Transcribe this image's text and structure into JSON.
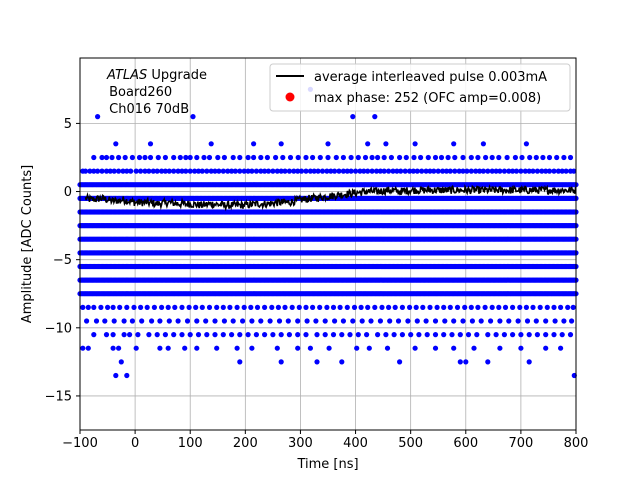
{
  "chart_data": {
    "type": "scatter",
    "xlabel": "Time [ns]",
    "ylabel": "Amplitude [ADC Counts]",
    "xlim": [
      -100,
      800
    ],
    "ylim": [
      -17.5,
      9.8
    ],
    "grid": true,
    "xticks": [
      -100,
      0,
      100,
      200,
      300,
      400,
      500,
      600,
      700,
      800
    ],
    "xtick_labels": [
      "−100",
      "0",
      "100",
      "200",
      "300",
      "400",
      "500",
      "600",
      "700",
      "800"
    ],
    "yticks": [
      -15,
      -10,
      -5,
      0,
      5
    ],
    "ytick_labels": [
      "−15",
      "−10",
      "−5",
      "0",
      "5"
    ],
    "annotation": {
      "italic": "ATLAS",
      "rest": " Upgrade",
      "line2": " Board260",
      "line3": " Ch016 70dB"
    },
    "legend": {
      "placement": "top-right",
      "entries": [
        {
          "label": "average interleaved pulse 0.003mA",
          "color": "#000000",
          "marker": "line"
        },
        {
          "label": "max phase: 252 (OFC amp=0.008)",
          "color": "#ff0000",
          "marker": "dot"
        }
      ]
    },
    "series": [
      {
        "kind": "scatter",
        "color": "#0000ff",
        "dense_levels": [
          0.5,
          -0.5,
          -1.5,
          -2.5,
          -3.5,
          -4.5,
          -5.5,
          -6.5,
          -7.5
        ],
        "sparse_levels": [
          {
            "y": 1.5,
            "x": [
              -95,
              -90,
              -82,
              -75,
              -68,
              -60,
              -52,
              -45,
              -38,
              -30,
              -22,
              -15,
              -8,
              2,
              10,
              18,
              25,
              33,
              40,
              48,
              55,
              62,
              70,
              78,
              85,
              92,
              100,
              108,
              115,
              122,
              130,
              138,
              145,
              152,
              160,
              168,
              175,
              182,
              190,
              198,
              205,
              212,
              220,
              228,
              235,
              242,
              250,
              258,
              265,
              272,
              280,
              288,
              295,
              302,
              310,
              318,
              325,
              332,
              340,
              348,
              355,
              362,
              370,
              378,
              385,
              392,
              400,
              408,
              415,
              422,
              430,
              438,
              445,
              452,
              460,
              468,
              475,
              482,
              490,
              498,
              505,
              512,
              520,
              528,
              535,
              542,
              550,
              558,
              565,
              572,
              580,
              588,
              595,
              602,
              610,
              618,
              625,
              632,
              640,
              648,
              655,
              662,
              670,
              678,
              685,
              692,
              700,
              708,
              715,
              722,
              730,
              738,
              745,
              752,
              760,
              768,
              775,
              782,
              790,
              796
            ]
          },
          {
            "y": 2.5,
            "x": [
              -75,
              -60,
              -52,
              -42,
              -30,
              -18,
              -5,
              8,
              18,
              28,
              42,
              55,
              70,
              82,
              92,
              100,
              112,
              125,
              135,
              150,
              162,
              178,
              190,
              205,
              215,
              228,
              240,
              255,
              268,
              282,
              296,
              310,
              322,
              336,
              350,
              365,
              378,
              392,
              405,
              418,
              430,
              440,
              452,
              465,
              480,
              492,
              506,
              518,
              532,
              545,
              556,
              568,
              580,
              595,
              610,
              622,
              636,
              648,
              660,
              675,
              690,
              702,
              716,
              728,
              740,
              752,
              765,
              778,
              790
            ]
          },
          {
            "y": 3.5,
            "x": [
              -35,
              28,
              138,
              215,
              265,
              350,
              422,
              455,
              508,
              578,
              632,
              710
            ]
          },
          {
            "y": 5.5,
            "x": [
              -68,
              105,
              395,
              435
            ]
          },
          {
            "y": 7.5,
            "x": [
              318
            ]
          },
          {
            "y": -8.5,
            "x": [
              -95,
              -85,
              -75,
              -62,
              -50,
              -40,
              -28,
              -15,
              -2,
              10,
              22,
              35,
              48,
              60,
              72,
              85,
              98,
              110,
              122,
              135,
              148,
              160,
              172,
              185,
              198,
              210,
              222,
              235,
              248,
              260,
              272,
              285,
              298,
              310,
              322,
              335,
              348,
              360,
              372,
              385,
              398,
              410,
              422,
              435,
              448,
              460,
              472,
              485,
              498,
              510,
              522,
              535,
              548,
              560,
              572,
              585,
              598,
              610,
              622,
              635,
              648,
              660,
              672,
              685,
              698,
              710,
              722,
              735,
              748,
              760,
              772,
              785,
              795
            ]
          },
          {
            "y": -9.5,
            "x": [
              -88,
              -70,
              -55,
              -38,
              -20,
              -5,
              12,
              30,
              45,
              62,
              78,
              95,
              112,
              128,
              145,
              162,
              178,
              195,
              212,
              228,
              245,
              262,
              278,
              295,
              312,
              328,
              345,
              362,
              378,
              395,
              412,
              428,
              445,
              462,
              478,
              495,
              512,
              528,
              545,
              562,
              578,
              595,
              612,
              628,
              645,
              662,
              678,
              695,
              712,
              728,
              745,
              762,
              778,
              792
            ]
          },
          {
            "y": -10.5,
            "x": [
              -75,
              -52,
              -40,
              -20,
              -10,
              5,
              25,
              40,
              55,
              70,
              85,
              100,
              115,
              130,
              145,
              160,
              175,
              190,
              205,
              220,
              235,
              250,
              265,
              280,
              295,
              310,
              330,
              345,
              360,
              375,
              390,
              405,
              420,
              440,
              455,
              470,
              485,
              500,
              515,
              530,
              545,
              560,
              575,
              590,
              605,
              620,
              640,
              655,
              670,
              685,
              700,
              715,
              730,
              745,
              760,
              775,
              790
            ]
          },
          {
            "y": -11.5,
            "x": [
              -95,
              -85,
              -40,
              -30,
              2,
              45,
              60,
              90,
              112,
              148,
              185,
              212,
              258,
              295,
              318,
              352,
              402,
              425,
              458,
              508,
              545,
              578,
              615,
              662,
              700,
              745,
              772
            ]
          },
          {
            "y": -12.5,
            "x": [
              -25,
              190,
              265,
              330,
              375,
              480,
              590,
              600,
              640,
              715
            ]
          },
          {
            "y": -13.5,
            "x": [
              -35,
              -15,
              797
            ]
          }
        ]
      },
      {
        "kind": "line",
        "name": "average interleaved pulse 0.003mA",
        "color": "#000000",
        "x": [
          -100,
          -80,
          -60,
          -40,
          -20,
          0,
          20,
          40,
          60,
          80,
          100,
          120,
          140,
          160,
          180,
          200,
          220,
          240,
          260,
          280,
          300,
          320,
          340,
          360,
          380,
          400,
          420,
          440,
          460,
          480,
          500,
          520,
          540,
          560,
          580,
          600,
          620,
          640,
          660,
          680,
          700,
          720,
          740,
          760,
          780,
          800
        ],
        "y": [
          -0.4,
          -0.6,
          -0.5,
          -0.7,
          -0.6,
          -0.8,
          -0.8,
          -0.9,
          -0.8,
          -0.9,
          -0.9,
          -1.0,
          -0.9,
          -1.0,
          -1.0,
          -1.0,
          -0.9,
          -0.9,
          -0.8,
          -0.8,
          -0.6,
          -0.5,
          -0.4,
          -0.3,
          -0.2,
          -0.1,
          0.0,
          0.0,
          0.1,
          0.0,
          0.1,
          0.1,
          0.1,
          0.1,
          0.1,
          0.1,
          0.1,
          0.1,
          0.1,
          0.1,
          0.1,
          0.1,
          0.1,
          0.1,
          0.1,
          0.1
        ]
      }
    ]
  }
}
